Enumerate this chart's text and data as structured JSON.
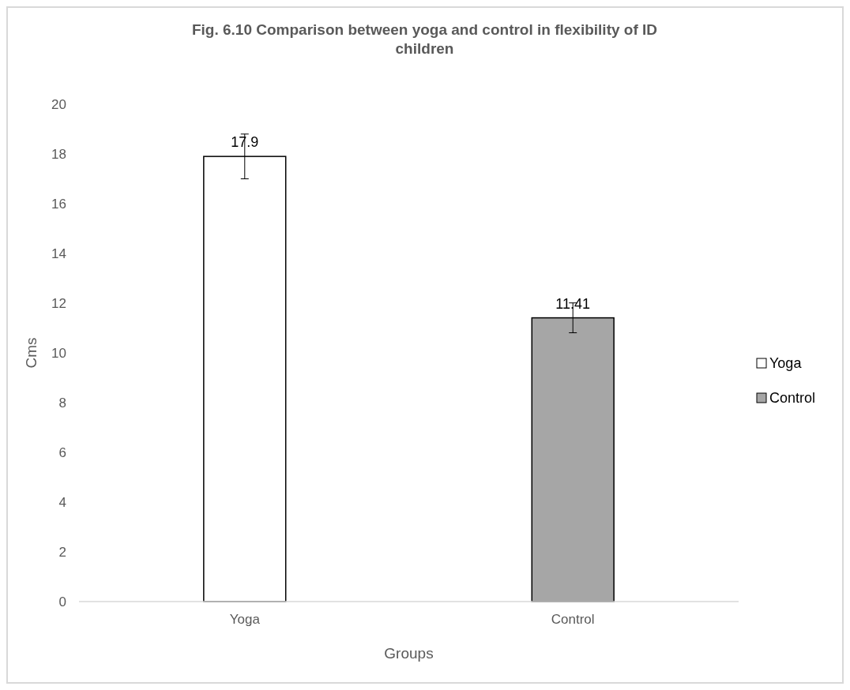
{
  "chart_data": {
    "type": "bar",
    "title": "Fig. 6.10 Comparison between yoga and control in flexibility of ID children",
    "xlabel": "Groups",
    "ylabel": "Cms",
    "categories": [
      "Yoga",
      "Control"
    ],
    "series": [
      {
        "name": "Yoga",
        "color": "#ffffff",
        "values": [
          17.9,
          null
        ],
        "errors": [
          0.9,
          null
        ]
      },
      {
        "name": "Control",
        "color": "#a6a6a6",
        "values": [
          null,
          11.41
        ],
        "errors": [
          null,
          0.6
        ]
      }
    ],
    "ylim": [
      0,
      20
    ],
    "yticks": [
      0,
      2,
      4,
      6,
      8,
      10,
      12,
      14,
      16,
      18,
      20
    ],
    "data_labels": true,
    "legend": "right"
  }
}
